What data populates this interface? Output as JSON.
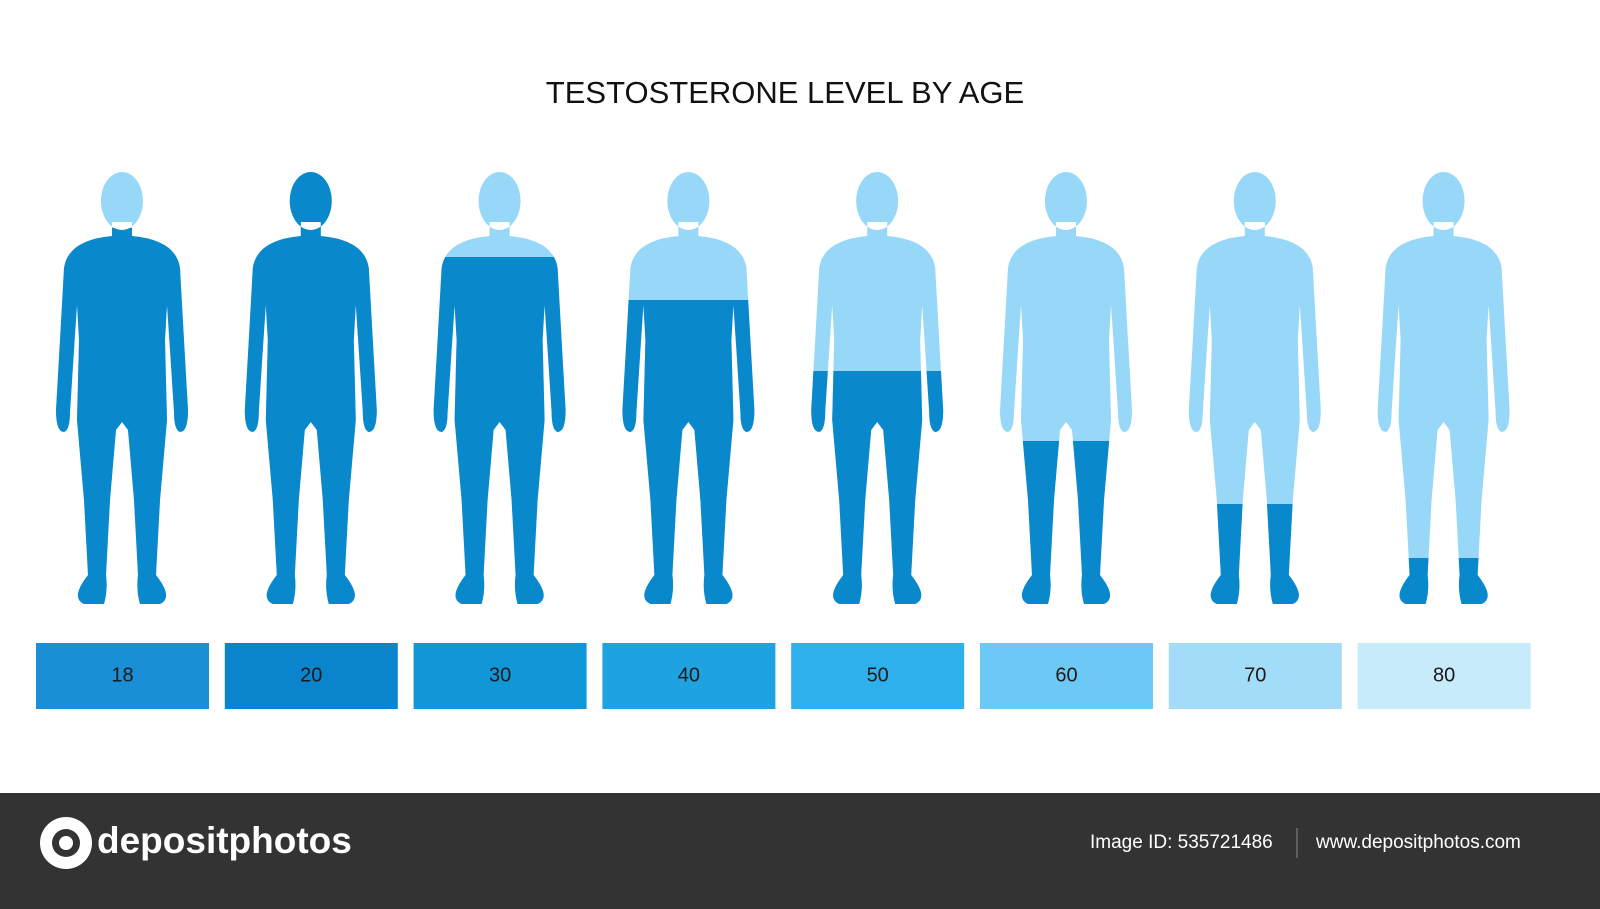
{
  "title": "TESTOSTERONE LEVEL BY AGE",
  "figures": [
    {
      "label": "18"
    },
    {
      "label": "20"
    },
    {
      "label": "30"
    },
    {
      "label": "40"
    },
    {
      "label": "50"
    },
    {
      "label": "60"
    },
    {
      "label": "70"
    },
    {
      "label": "80"
    }
  ],
  "footer": {
    "brand": "depositphotos",
    "image_id": "Image ID: 535721486",
    "website": "www.depositphotos.com"
  }
}
